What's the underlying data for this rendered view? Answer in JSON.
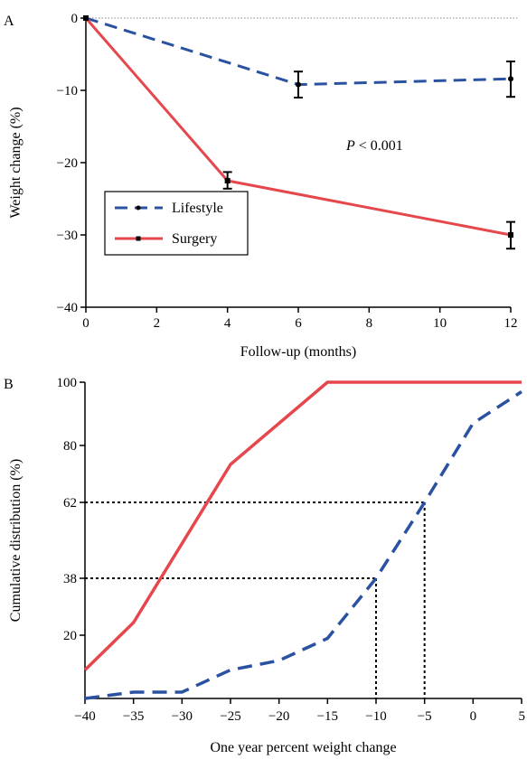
{
  "chart_data": [
    {
      "panel": "A",
      "type": "line",
      "xlabel": "Follow-up (months)",
      "ylabel": "Weight change (%)",
      "xlim": [
        0,
        12
      ],
      "ylim": [
        -40,
        0
      ],
      "xticks": [
        0,
        2,
        4,
        6,
        8,
        10,
        12
      ],
      "yticks": [
        0,
        -10,
        -20,
        -30,
        -40
      ],
      "xtick_labels": [
        "0",
        "2",
        "4",
        "6",
        "8",
        "10",
        "12"
      ],
      "ytick_labels": [
        "0",
        "−10",
        "−20",
        "−30",
        "−40"
      ],
      "reference_line_y": 0,
      "annotation": {
        "italic": "P",
        "rest": " < 0.001"
      },
      "legend": {
        "placement": "lower-left",
        "entries": [
          "Lifestyle",
          "Surgery"
        ]
      },
      "series": [
        {
          "name": "Lifestyle",
          "color": "#2a52a0",
          "style": "dashed",
          "marker": "circle",
          "x": [
            0,
            6,
            12
          ],
          "y": [
            0,
            -9.2,
            -8.4
          ],
          "err_low": [
            0,
            -11.0,
            -10.9
          ],
          "err_high": [
            0,
            -7.4,
            -6.0
          ]
        },
        {
          "name": "Surgery",
          "color": "#e6474c",
          "style": "solid",
          "marker": "square",
          "x": [
            0,
            4,
            12
          ],
          "y": [
            0,
            -22.5,
            -30.0
          ],
          "err_low": [
            0,
            -23.6,
            -31.9
          ],
          "err_high": [
            0,
            -21.3,
            -28.2
          ]
        }
      ]
    },
    {
      "panel": "B",
      "type": "line",
      "xlabel": "One year percent weight change",
      "ylabel": "Cumulative distribution (%)",
      "xlim": [
        -40,
        5
      ],
      "ylim": [
        0,
        100
      ],
      "xticks": [
        -40,
        -35,
        -30,
        -25,
        -20,
        -15,
        -10,
        -5,
        0,
        5
      ],
      "yticks": [
        20,
        38,
        62,
        80,
        100
      ],
      "xtick_labels": [
        "−40",
        "−35",
        "−30",
        "−25",
        "−20",
        "−15",
        "−10",
        "−5",
        "0",
        "5"
      ],
      "ytick_labels": [
        "20",
        "38",
        "62",
        "80",
        "100"
      ],
      "guide_lines": [
        {
          "x": -10,
          "y": 38
        },
        {
          "x": -5,
          "y": 62
        }
      ],
      "series": [
        {
          "name": "Surgery",
          "color": "#e6474c",
          "style": "solid",
          "x": [
            -40,
            -35,
            -25,
            -15,
            5
          ],
          "y": [
            9,
            24,
            74,
            100,
            100
          ]
        },
        {
          "name": "Lifestyle",
          "color": "#2a52a0",
          "style": "dashed",
          "x": [
            -40,
            -35,
            -30,
            -25,
            -20,
            -15,
            -10,
            -5,
            0,
            5
          ],
          "y": [
            0,
            2,
            2,
            9,
            12,
            19,
            38,
            62,
            87,
            97
          ]
        }
      ]
    }
  ]
}
